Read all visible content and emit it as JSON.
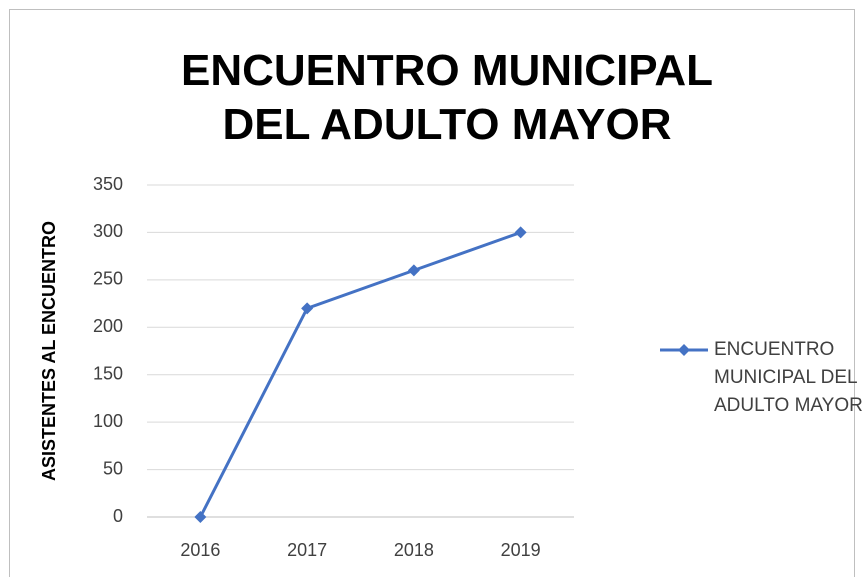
{
  "chart_data": {
    "type": "line",
    "title": "ENCUENTRO MUNICIPAL DEL ADULTO MAYOR",
    "y_label": "ASISTENTES AL ENCUENTRO",
    "categories": [
      "2016",
      "2017",
      "2018",
      "2019"
    ],
    "series": [
      {
        "name": "ENCUENTRO MUNICIPAL DEL ADULTO MAYOR",
        "color": "#4472c4",
        "values": [
          0,
          220,
          260,
          300
        ]
      }
    ],
    "ylim": [
      0,
      350
    ],
    "yticks": [
      0,
      50,
      100,
      150,
      200,
      250,
      300,
      350
    ],
    "grid": true,
    "legend": "right"
  }
}
